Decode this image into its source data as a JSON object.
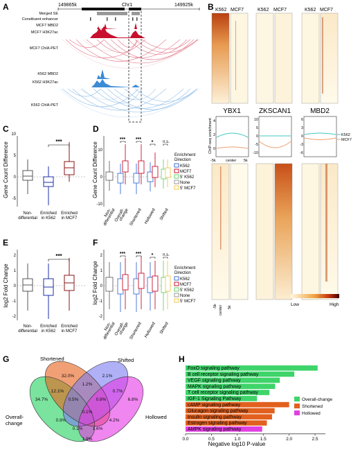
{
  "panel_letters": [
    "A",
    "B",
    "C",
    "D",
    "E",
    "F",
    "G",
    "H"
  ],
  "panelA": {
    "coord_left": "149865k",
    "coord_right": "149925k",
    "chrom": "Chr1",
    "tracks": [
      "Merged SE",
      "Constituent enhancer",
      "MCF7 MBD2",
      "MCF7 H3K27ac",
      "MCF7 ChIA-PET",
      "K562 MBD2",
      "K562 H3K27ac",
      "K562 ChIA-PET"
    ],
    "colors": {
      "mcf7": "#c8102e",
      "k562": "#3b8bd6",
      "se": "#888888"
    }
  },
  "panelB": {
    "top_groups": [
      [
        "K562",
        "MCF7"
      ],
      [
        "K562",
        "MCF7"
      ],
      [
        "K562",
        "MCF7"
      ]
    ],
    "proteins": [
      "YBX1",
      "ZKSCAN1",
      "MBD2"
    ],
    "profile_ylabel": "ChIP-seq enrichment",
    "profile_yticks": [
      [
        "4",
        "2",
        "0"
      ],
      [
        "10",
        "5",
        "0",
        "-5",
        "-10"
      ],
      [
        "6",
        "3",
        "0",
        "-3",
        "-6"
      ]
    ],
    "profile_xticks": [
      "-5k",
      "center",
      "5k"
    ],
    "legend": [
      "K562",
      "MCF7"
    ],
    "bottom_xticks": [
      "-5k",
      "center",
      "5k"
    ],
    "colorbar": [
      "Low",
      "High"
    ]
  },
  "panelC": {
    "ylabel": "Gene Count Difference",
    "yticks": [
      "-5",
      "0",
      "5",
      "10"
    ],
    "categories": [
      "Non-\ndifferential",
      "Enriched\nin K562",
      "Enriched\nin MCF7"
    ],
    "significance": "***"
  },
  "panelD": {
    "ylabel": "Gene Count Difference",
    "yticks": [
      "-10",
      "0",
      "10"
    ],
    "categories": [
      "Non-\ndifferential",
      "Overall-\nchange",
      "Shortened",
      "Hollowed",
      "Shifted"
    ],
    "significance": [
      "***",
      "***",
      "*",
      "n.s."
    ],
    "legend_title": "Enrichment\nDirection",
    "legend": [
      "K562",
      "MCF7",
      "5' K562",
      "None",
      "5' MCF7"
    ]
  },
  "panelE": {
    "ylabel": "log2 Fold Change",
    "yticks": [
      "-2",
      "-1",
      "0",
      "1",
      "2"
    ],
    "categories": [
      "Non-\ndifferential",
      "Enriched\nin K562",
      "Enriched\nin MCF7"
    ],
    "significance": "***"
  },
  "panelF": {
    "ylabel": "log2 Fold Change",
    "yticks": [
      "-2",
      "-1",
      "0",
      "1",
      "2"
    ],
    "categories": [
      "Non-\ndifferential",
      "Overall-\nchange",
      "Shortened",
      "Hollowed",
      "Shifted"
    ],
    "significance": [
      "***",
      "***",
      "*",
      "n.s."
    ],
    "legend_title": "Enrichment\nDirection",
    "legend": [
      "K562",
      "MCF7",
      "5' K562",
      "None",
      "5' MCF7"
    ]
  },
  "panelG": {
    "sets": [
      "Overall-\nchange",
      "Shortened",
      "Shifted",
      "Hollowed"
    ],
    "values": [
      "34.7%",
      "32.0%",
      "2.1%",
      "6.8%",
      "12.1%",
      "1.2%",
      "0.7%",
      "0.5%",
      "0.8%",
      "4.2%",
      "0.9%",
      "0.1%",
      "0.1%",
      "1.6%",
      "1.9%"
    ]
  },
  "chart_data": {
    "type": "bar",
    "orientation": "horizontal",
    "categories": [
      "FoxO signaling pathway",
      "B cell receptor signaling pathway",
      "VEGF signaling pathway",
      "MAPK signaling pathway",
      "T cell receptor signaling pathway",
      "IGF-1 Signaling Pathway",
      "cAMP signaling pathway",
      "Glucagon signaling pathway",
      "Insulin signaling pathway",
      "Estrogen signaling pathway",
      "AMPK signaling pathway"
    ],
    "values": [
      2.55,
      2.1,
      1.82,
      1.73,
      1.62,
      1.38,
      2.0,
      1.72,
      1.67,
      1.57,
      1.48
    ],
    "groups": [
      "Overall-change",
      "Overall-change",
      "Overall-change",
      "Overall-change",
      "Overall-change",
      "Overall-change",
      "Shortened",
      "Shortened",
      "Shortened",
      "Shortened",
      "Hollowed"
    ],
    "legend": [
      "Overall-change",
      "Shortened",
      "Hollowed"
    ],
    "colors": {
      "Overall-change": "#3fd46a",
      "Shortened": "#e2601e",
      "Hollowed": "#e040e0"
    },
    "xlabel": "Negative log10 P-value",
    "xticks": [
      "0.0",
      "0.5",
      "1.0",
      "1.5",
      "2.0",
      "2.5"
    ],
    "xlim": [
      0,
      2.7
    ]
  }
}
